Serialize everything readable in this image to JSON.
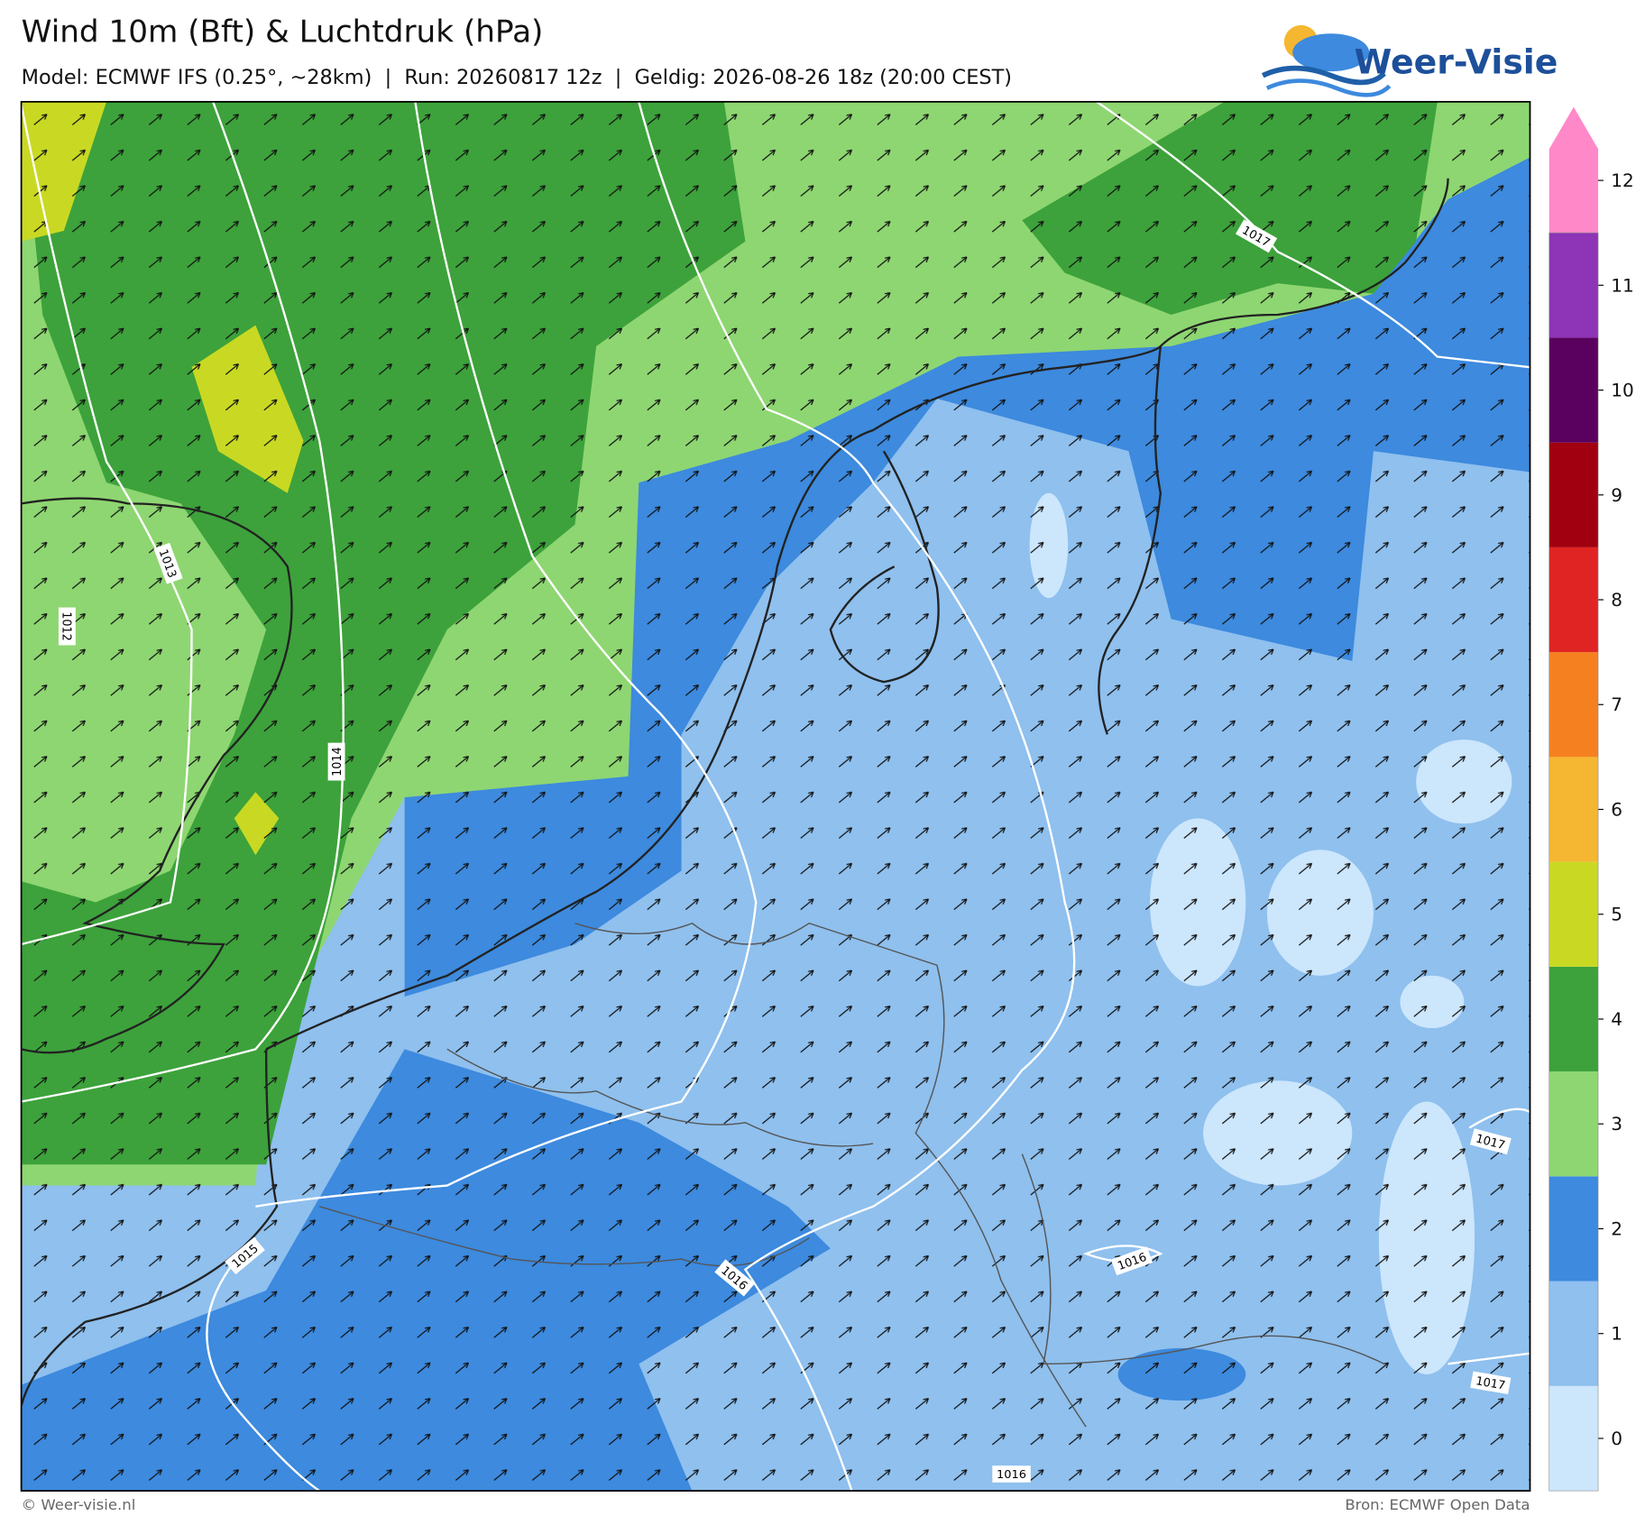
{
  "header": {
    "title": "Wind 10m (Bft) & Luchtdruk (hPa)",
    "subtitle": "Model: ECMWF IFS (0.25°, ~28km)  |  Run: 20260817 12z  |  Geldig: 2026-08-26 18z (20:00 CEST)",
    "logo": "Weer-Visie"
  },
  "colorbar": {
    "ticks": [
      0,
      1,
      2,
      3,
      4,
      5,
      6,
      7,
      8,
      9,
      10,
      11,
      12
    ],
    "colors": [
      "#cce6fc",
      "#8fc0ee",
      "#3d8ade",
      "#8ed672",
      "#3da23b",
      "#c9d923",
      "#f5b731",
      "#f5801f",
      "#e02424",
      "#a0000f",
      "#5a005e",
      "#8e34b6",
      "#ff88c9"
    ]
  },
  "isobar_labels": [
    "1013",
    "1012",
    "1014",
    "1015",
    "1016",
    "1016",
    "1017",
    "1017",
    "1017",
    "1016"
  ],
  "footer": {
    "left": "© Weer-visie.nl",
    "right": "Bron: ECMWF Open Data"
  }
}
